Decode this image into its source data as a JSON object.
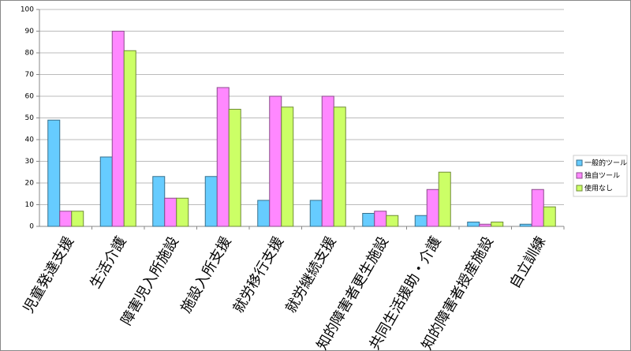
{
  "chart_data": {
    "type": "bar",
    "categories": [
      "児童発達支援",
      "生活介護",
      "障害児入所施設",
      "施設入所支援",
      "就労移行支援",
      "就労継続支援",
      "知的障害者更生施設",
      "共同生活援助・介護",
      "知的障害者授産施設",
      "自立訓練"
    ],
    "series": [
      {
        "name": "一般的ツール",
        "color": "#66ccff",
        "values": [
          49,
          32,
          23,
          23,
          12,
          12,
          6,
          5,
          2,
          1
        ]
      },
      {
        "name": "独自ツール",
        "color": "#ff88ff",
        "values": [
          7,
          90,
          13,
          64,
          60,
          60,
          7,
          17,
          1,
          17
        ]
      },
      {
        "name": "使用なし",
        "color": "#ccff66",
        "values": [
          7,
          81,
          13,
          54,
          55,
          55,
          5,
          25,
          2,
          9
        ]
      }
    ],
    "ylim": [
      0,
      100
    ],
    "yticks": [
      0,
      10,
      20,
      30,
      40,
      50,
      60,
      70,
      80,
      90,
      100
    ],
    "grid": true,
    "legend": "right"
  }
}
